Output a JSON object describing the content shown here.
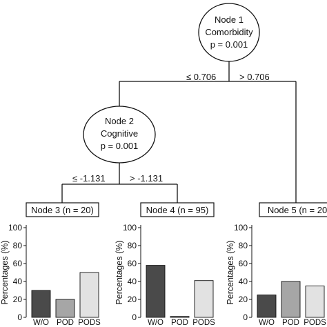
{
  "nodes": [
    {
      "id": "node-1",
      "lines": [
        "Node 1",
        "Comorbidity",
        "p = 0.001"
      ]
    },
    {
      "id": "node-2",
      "lines": [
        "Node 2",
        "Cognitive",
        "p = 0.001"
      ]
    }
  ],
  "edge_labels": {
    "node1_left": "≤ 0.706",
    "node1_right": "> 0.706",
    "node2_left": "≤ -1.131",
    "node2_right": "> -1.131"
  },
  "category_colors": {
    "W/O": "#4a4a4a",
    "POD": "#a6a6a6",
    "PODS": "#e2e2e2"
  },
  "chart_data": [
    {
      "type": "bar",
      "title": "Node 3 (n = 20)",
      "ylabel": "Percentages (%)",
      "categories": [
        "W/O",
        "POD",
        "PODS"
      ],
      "values": [
        30,
        20,
        50
      ],
      "ylim": [
        0,
        100
      ],
      "yticks": [
        "0",
        "20",
        "40",
        "60",
        "80",
        "100"
      ]
    },
    {
      "type": "bar",
      "title": "Node 4 (n = 95)",
      "ylabel": "Percentages (%)",
      "categories": [
        "W/O",
        "POD",
        "PODS"
      ],
      "values": [
        58,
        1,
        41
      ],
      "ylim": [
        0,
        100
      ],
      "yticks": [
        "0",
        "20",
        "40",
        "60",
        "80",
        "100"
      ]
    },
    {
      "type": "bar",
      "title": "Node 5 (n = 20",
      "ylabel": "Percentages (%)",
      "categories": [
        "W/O",
        "POD",
        "PODS"
      ],
      "values": [
        25,
        40,
        35
      ],
      "ylim": [
        0,
        100
      ],
      "yticks": [
        "0",
        "20",
        "40",
        "60",
        "80",
        "100"
      ]
    }
  ]
}
